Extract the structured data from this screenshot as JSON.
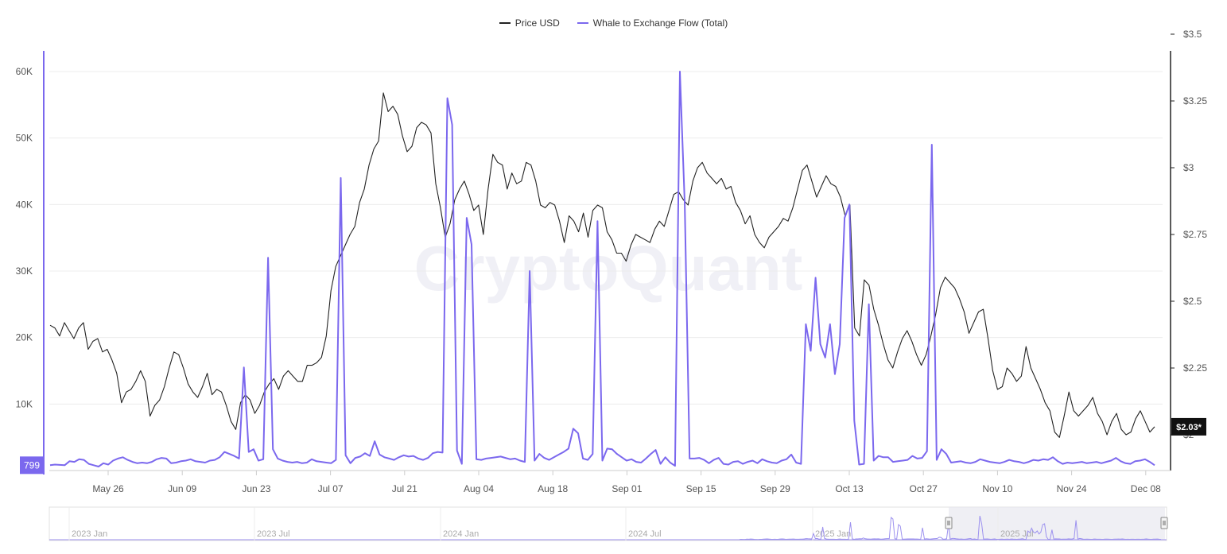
{
  "legend": {
    "price_label": "Price USD",
    "flow_label": "Whale to Exchange Flow (Total)"
  },
  "watermark": "CryptoQuant",
  "colors": {
    "price": "#222222",
    "flow": "#7b68ee",
    "grid": "#ececec",
    "axis_text": "#555555"
  },
  "chart_data": {
    "type": "line",
    "x_ticks": [
      "May 26",
      "Jun 09",
      "Jun 23",
      "Jul 07",
      "Jul 21",
      "Aug 04",
      "Aug 18",
      "Sep 01",
      "Sep 15",
      "Sep 29",
      "Oct 13",
      "Oct 27",
      "Nov 10",
      "Nov 24",
      "Dec 08"
    ],
    "y_left_ticks": [
      "10K",
      "20K",
      "30K",
      "40K",
      "50K",
      "60K"
    ],
    "y_left_range": [
      0,
      60000
    ],
    "y_right_ticks": [
      "$2",
      "$2.25",
      "$2.5",
      "$2.75",
      "$3",
      "$3.25",
      "$3.5"
    ],
    "y_right_range": [
      2.0,
      3.5
    ],
    "grid": true,
    "legend_position": "top-center",
    "left_current_label": "799",
    "right_current_label": "$2.03*",
    "series": [
      {
        "name": "Price USD",
        "axis": "right",
        "values": [
          2.41,
          2.4,
          2.37,
          2.42,
          2.39,
          2.36,
          2.4,
          2.42,
          2.32,
          2.35,
          2.36,
          2.31,
          2.32,
          2.28,
          2.23,
          2.12,
          2.16,
          2.17,
          2.2,
          2.24,
          2.2,
          2.07,
          2.11,
          2.13,
          2.18,
          2.25,
          2.31,
          2.3,
          2.25,
          2.19,
          2.16,
          2.14,
          2.18,
          2.23,
          2.15,
          2.17,
          2.16,
          2.11,
          2.05,
          2.02,
          2.12,
          2.15,
          2.13,
          2.08,
          2.11,
          2.16,
          2.19,
          2.21,
          2.17,
          2.22,
          2.24,
          2.22,
          2.2,
          2.2,
          2.26,
          2.26,
          2.27,
          2.29,
          2.37,
          2.54,
          2.63,
          2.67,
          2.71,
          2.75,
          2.78,
          2.87,
          2.92,
          3.01,
          3.07,
          3.1,
          3.28,
          3.21,
          3.23,
          3.2,
          3.12,
          3.06,
          3.08,
          3.15,
          3.17,
          3.16,
          3.13,
          2.94,
          2.85,
          2.74,
          2.79,
          2.88,
          2.92,
          2.95,
          2.9,
          2.84,
          2.86,
          2.75,
          2.92,
          3.05,
          3.02,
          3.01,
          2.92,
          2.98,
          2.94,
          2.95,
          3.02,
          3.01,
          2.95,
          2.86,
          2.85,
          2.87,
          2.86,
          2.8,
          2.72,
          2.82,
          2.8,
          2.76,
          2.83,
          2.74,
          2.84,
          2.86,
          2.85,
          2.76,
          2.73,
          2.68,
          2.68,
          2.65,
          2.71,
          2.75,
          2.74,
          2.73,
          2.72,
          2.77,
          2.8,
          2.78,
          2.84,
          2.9,
          2.91,
          2.88,
          2.86,
          2.95,
          3.0,
          3.02,
          2.98,
          2.96,
          2.94,
          2.96,
          2.92,
          2.93,
          2.87,
          2.84,
          2.79,
          2.82,
          2.75,
          2.72,
          2.7,
          2.74,
          2.76,
          2.78,
          2.81,
          2.8,
          2.85,
          2.92,
          2.99,
          3.01,
          2.95,
          2.89,
          2.93,
          2.97,
          2.94,
          2.93,
          2.89,
          2.82,
          2.86,
          2.4,
          2.37,
          2.58,
          2.56,
          2.47,
          2.41,
          2.34,
          2.28,
          2.25,
          2.31,
          2.36,
          2.39,
          2.35,
          2.3,
          2.26,
          2.3,
          2.37,
          2.45,
          2.55,
          2.59,
          2.57,
          2.55,
          2.51,
          2.46,
          2.38,
          2.42,
          2.46,
          2.47,
          2.36,
          2.24,
          2.17,
          2.18,
          2.25,
          2.23,
          2.2,
          2.22,
          2.33,
          2.25,
          2.21,
          2.17,
          2.12,
          2.09,
          2.01,
          1.99,
          2.07,
          2.16,
          2.09,
          2.07,
          2.09,
          2.11,
          2.14,
          2.08,
          2.05,
          2.0,
          2.05,
          2.08,
          2.02,
          2.0,
          2.01,
          2.06,
          2.09,
          2.05,
          2.01,
          2.03
        ]
      },
      {
        "name": "Whale to Exchange Flow (Total)",
        "axis": "left",
        "values": [
          800,
          900,
          850,
          800,
          1400,
          1300,
          1700,
          1600,
          1000,
          800,
          600,
          1100,
          900,
          1500,
          1800,
          2000,
          1600,
          1300,
          1100,
          1200,
          1100,
          1300,
          1700,
          1900,
          1800,
          1100,
          1200,
          1400,
          1500,
          1700,
          1400,
          1300,
          1200,
          1500,
          1600,
          2000,
          2800,
          2500,
          2200,
          1800,
          15500,
          2800,
          3200,
          1500,
          1700,
          32000,
          3200,
          1800,
          1500,
          1300,
          1200,
          1300,
          1100,
          1200,
          1700,
          1400,
          1300,
          1200,
          1100,
          1600,
          44000,
          2300,
          1100,
          1900,
          2100,
          2600,
          2200,
          4400,
          2400,
          2000,
          1800,
          1600,
          2000,
          2300,
          2100,
          2200,
          1800,
          1600,
          1900,
          2600,
          2800,
          2700,
          56000,
          52000,
          3000,
          1000,
          38000,
          34000,
          1700,
          1600,
          1800,
          1900,
          2000,
          2100,
          1900,
          1700,
          1800,
          1500,
          1300,
          30000,
          1500,
          2500,
          1900,
          1600,
          2000,
          2400,
          2800,
          3300,
          6300,
          5600,
          1800,
          1600,
          2500,
          37500,
          1500,
          3300,
          3200,
          2500,
          2000,
          1500,
          1700,
          1300,
          1200,
          1800,
          2500,
          3100,
          1000,
          2000,
          1200,
          700,
          60000,
          40000,
          1800,
          1800,
          1900,
          1600,
          1100,
          1600,
          1900,
          1000,
          900,
          1300,
          1400,
          1000,
          1300,
          1500,
          1100,
          1700,
          1400,
          1200,
          1100,
          1500,
          1700,
          2400,
          1200,
          1000,
          22000,
          18000,
          29000,
          19000,
          17000,
          22000,
          14500,
          19000,
          38000,
          40000,
          7500,
          900,
          1000,
          25000,
          1500,
          2200,
          2000,
          2000,
          1300,
          1400,
          1500,
          1600,
          2200,
          1800,
          1900,
          2900,
          49000,
          1600,
          3200,
          2500,
          1200,
          1300,
          1400,
          1200,
          1100,
          1300,
          1700,
          1500,
          1300,
          1200,
          1100,
          1300,
          1600,
          1400,
          1300,
          1100,
          1300,
          1600,
          1500,
          1700,
          1600,
          2000,
          1400,
          1000,
          1200,
          1100,
          1200,
          1300,
          1100,
          1200,
          1300,
          1100,
          1300,
          1500,
          1900,
          1400,
          1100,
          1000,
          1400,
          1500,
          1700,
          1300,
          799
        ]
      }
    ]
  },
  "navigator": {
    "labels": [
      "2023 Jan",
      "2023 Jul",
      "2024 Jan",
      "2024 Jul",
      "2025 Jan",
      "2025 Jul"
    ]
  }
}
